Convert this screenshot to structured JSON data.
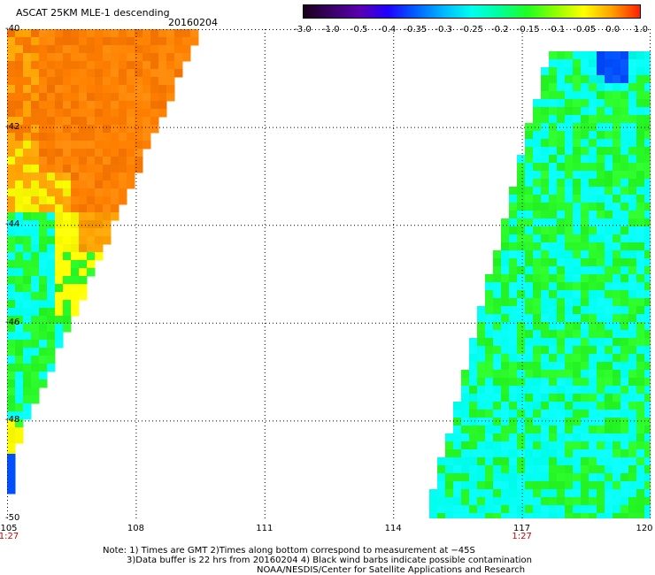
{
  "header": {
    "title": "ASCAT 25KM MLE-1 descending",
    "date": "20160204"
  },
  "colorbar": {
    "labels": [
      "-3.0",
      "-1.0",
      "-0.5",
      "-0.4",
      "-0.35",
      "-0.3",
      "-0.25",
      "-0.2",
      "-0.15",
      "-0.1",
      "-0.05",
      "0.0",
      "1.0"
    ],
    "colors": [
      "#1a001a",
      "#3a0066",
      "#5a00b0",
      "#2000ff",
      "#0060ff",
      "#00b8ff",
      "#00ffee",
      "#00ff9a",
      "#20ff20",
      "#90ff00",
      "#ffff00",
      "#ffa000",
      "#ff2000"
    ]
  },
  "map": {
    "lat_labels": [
      "-40",
      "-42",
      "-44",
      "-46",
      "-48",
      "-50"
    ],
    "lon_labels": [
      "105",
      "108",
      "111",
      "114",
      "117",
      "120"
    ],
    "lat_range": [
      -50,
      -40
    ],
    "lon_range": [
      105,
      120
    ],
    "time_labels": [
      {
        "lon": 105,
        "text": "1:27"
      },
      {
        "lon": 117,
        "text": "1:27"
      }
    ],
    "swath_colors": {
      "orange": "#ff8000",
      "light_orange": "#ffa000",
      "yellow": "#ffff00",
      "green": "#30ff30",
      "cyan": "#00ffee",
      "blue": "#0050ff"
    }
  },
  "notes": {
    "line1": "Note: 1) Times are GMT 2)Times along bottom correspond to measurement at −45S",
    "line2": "3)Data buffer is 22 hrs from 20160204 4) Black wind barbs indicate possible contamination",
    "line3": "NOAA/NESDIS/Center for Satellite Applications and Research"
  }
}
